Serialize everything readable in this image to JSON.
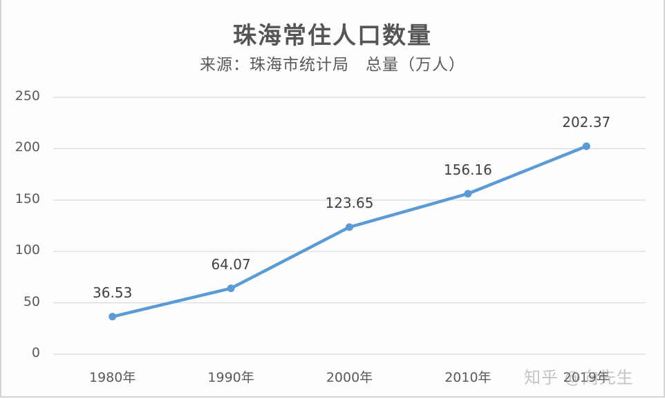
{
  "chart_data": {
    "type": "line",
    "title": "珠海常住人口数量",
    "subtitle": "来源：珠海市统计局　总量（万人）",
    "categories": [
      "1980年",
      "1990年",
      "2000年",
      "2010年",
      "2019年"
    ],
    "series": [
      {
        "name": "总量（万人）",
        "values": [
          36.53,
          64.07,
          123.65,
          156.16,
          202.37
        ],
        "color": "#5b9bd5"
      }
    ],
    "data_labels": [
      "36.53",
      "64.07",
      "123.65",
      "156.16",
      "202.37"
    ],
    "yticks": [
      "250",
      "200",
      "150",
      "100",
      "50",
      "0"
    ],
    "xlabel": "",
    "ylabel": "",
    "ylim": [
      0,
      250
    ],
    "grid": true,
    "legend": "none"
  },
  "watermark": "知乎 @向先生"
}
